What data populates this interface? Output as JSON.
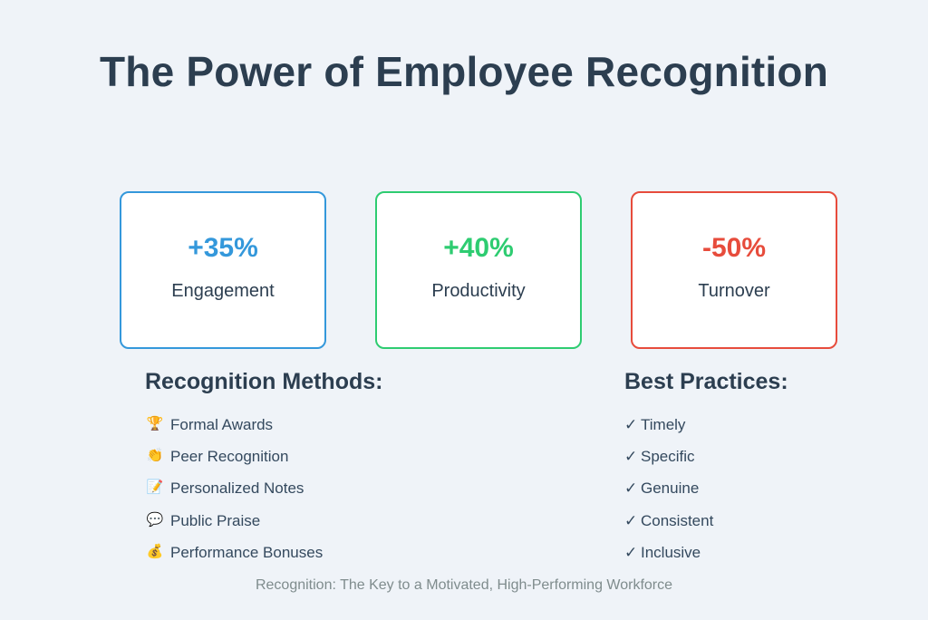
{
  "title": "The Power of Employee Recognition",
  "stats": [
    {
      "value": "+35%",
      "label": "Engagement",
      "color": "#3498db"
    },
    {
      "value": "+40%",
      "label": "Productivity",
      "color": "#2ecc71"
    },
    {
      "value": "-50%",
      "label": "Turnover",
      "color": "#e74c3c"
    }
  ],
  "methods": {
    "heading": "Recognition Methods:",
    "items": [
      {
        "icon": "trophy-icon",
        "glyph": "🏆",
        "label": "Formal Awards"
      },
      {
        "icon": "clapping-hands-icon",
        "glyph": "👏",
        "label": "Peer Recognition"
      },
      {
        "icon": "memo-icon",
        "glyph": "📝",
        "label": "Personalized Notes"
      },
      {
        "icon": "speech-bubble-icon",
        "glyph": "💬",
        "label": "Public Praise"
      },
      {
        "icon": "money-bag-icon",
        "glyph": "💰",
        "label": "Performance Bonuses"
      }
    ]
  },
  "practices": {
    "heading": "Best Practices:",
    "check": "✓",
    "items": [
      "Timely",
      "Specific",
      "Genuine",
      "Consistent",
      "Inclusive"
    ]
  },
  "footer": "Recognition: The Key to a Motivated, High-Performing Workforce"
}
